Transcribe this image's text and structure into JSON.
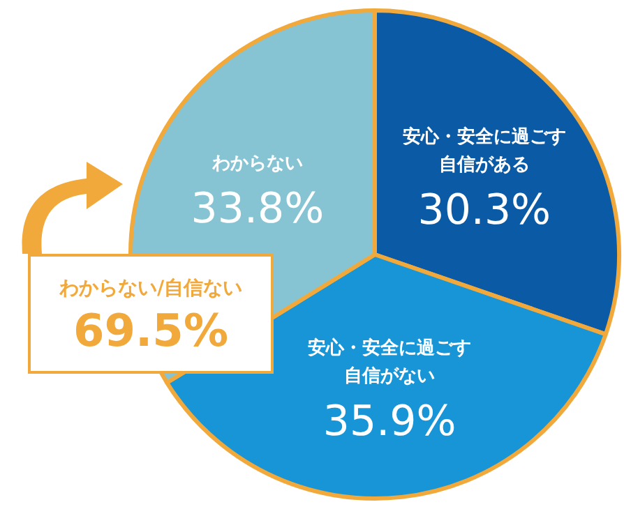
{
  "chart_data": {
    "type": "pie",
    "categories": [
      "安心・安全に過ごす自信がある",
      "安心・安全に過ごす自信がない",
      "わからない"
    ],
    "values": [
      30.3,
      35.9,
      33.8
    ],
    "value_labels": [
      "30.3%",
      "35.9%",
      "33.8%"
    ],
    "colors": [
      "#0b5aa6",
      "#1795d6",
      "#86c4d3"
    ],
    "annotations": [
      "わからない/自信ない",
      "69.5%"
    ]
  }
}
